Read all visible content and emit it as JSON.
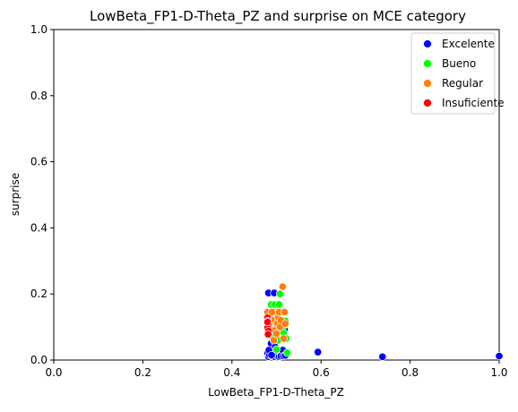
{
  "chart_data": {
    "type": "scatter",
    "title": "LowBeta_FP1-D-Theta_PZ and surprise on MCE category",
    "xlabel": "LowBeta_FP1-D-Theta_PZ",
    "ylabel": "surprise",
    "xlim": [
      0,
      1
    ],
    "ylim": [
      0,
      1
    ],
    "xticks": [
      "0.0",
      "0.2",
      "0.4",
      "0.6",
      "0.8",
      "1.0"
    ],
    "yticks": [
      "0.0",
      "0.2",
      "0.4",
      "0.6",
      "0.8",
      "1.0"
    ],
    "grid": false,
    "legend_position": "top-right",
    "series": [
      {
        "name": "Excelente",
        "color": "#0000ff",
        "points": [
          [
            0.482,
            0.203
          ],
          [
            0.495,
            0.203
          ],
          [
            0.48,
            0.02
          ],
          [
            0.482,
            0.01
          ],
          [
            0.484,
            0.015
          ],
          [
            0.486,
            0.035
          ],
          [
            0.488,
            0.05
          ],
          [
            0.49,
            0.012
          ],
          [
            0.492,
            0.025
          ],
          [
            0.494,
            0.06
          ],
          [
            0.496,
            0.01
          ],
          [
            0.498,
            0.018
          ],
          [
            0.5,
            0.03
          ],
          [
            0.502,
            0.012
          ],
          [
            0.504,
            0.022
          ],
          [
            0.506,
            0.01
          ],
          [
            0.508,
            0.09
          ],
          [
            0.51,
            0.012
          ],
          [
            0.512,
            0.1
          ],
          [
            0.514,
            0.03
          ],
          [
            0.516,
            0.012
          ],
          [
            0.518,
            0.092
          ],
          [
            0.52,
            0.014
          ],
          [
            0.483,
            0.03
          ],
          [
            0.489,
            0.015
          ],
          [
            0.497,
            0.04
          ],
          [
            0.593,
            0.024
          ],
          [
            0.738,
            0.01
          ],
          [
            1.0,
            0.012
          ]
        ]
      },
      {
        "name": "Bueno",
        "color": "#00ff00",
        "points": [
          [
            0.488,
            0.168
          ],
          [
            0.49,
            0.11
          ],
          [
            0.494,
            0.13
          ],
          [
            0.496,
            0.168
          ],
          [
            0.498,
            0.09
          ],
          [
            0.5,
            0.12
          ],
          [
            0.502,
            0.145
          ],
          [
            0.504,
            0.06
          ],
          [
            0.506,
            0.168
          ],
          [
            0.508,
            0.2
          ],
          [
            0.51,
            0.145
          ],
          [
            0.512,
            0.12
          ],
          [
            0.514,
            0.1
          ],
          [
            0.516,
            0.082
          ],
          [
            0.518,
            0.145
          ],
          [
            0.52,
            0.118
          ],
          [
            0.522,
            0.065
          ],
          [
            0.524,
            0.022
          ],
          [
            0.492,
            0.07
          ],
          [
            0.5,
            0.032
          ]
        ]
      },
      {
        "name": "Regular",
        "color": "#ff7f0e",
        "points": [
          [
            0.48,
            0.145
          ],
          [
            0.484,
            0.1
          ],
          [
            0.486,
            0.13
          ],
          [
            0.49,
            0.145
          ],
          [
            0.492,
            0.12
          ],
          [
            0.494,
            0.06
          ],
          [
            0.496,
            0.09
          ],
          [
            0.5,
            0.08
          ],
          [
            0.502,
            0.11
          ],
          [
            0.504,
            0.13
          ],
          [
            0.506,
            0.145
          ],
          [
            0.508,
            0.1
          ],
          [
            0.51,
            0.12
          ],
          [
            0.514,
            0.222
          ],
          [
            0.516,
            0.065
          ],
          [
            0.518,
            0.145
          ],
          [
            0.52,
            0.11
          ]
        ]
      },
      {
        "name": "Insuficiente",
        "color": "#ff0000",
        "points": [
          [
            0.48,
            0.128
          ],
          [
            0.481,
            0.118
          ],
          [
            0.482,
            0.108
          ],
          [
            0.48,
            0.098
          ],
          [
            0.482,
            0.088
          ],
          [
            0.481,
            0.078
          ],
          [
            0.48,
            0.115
          ]
        ]
      }
    ]
  }
}
